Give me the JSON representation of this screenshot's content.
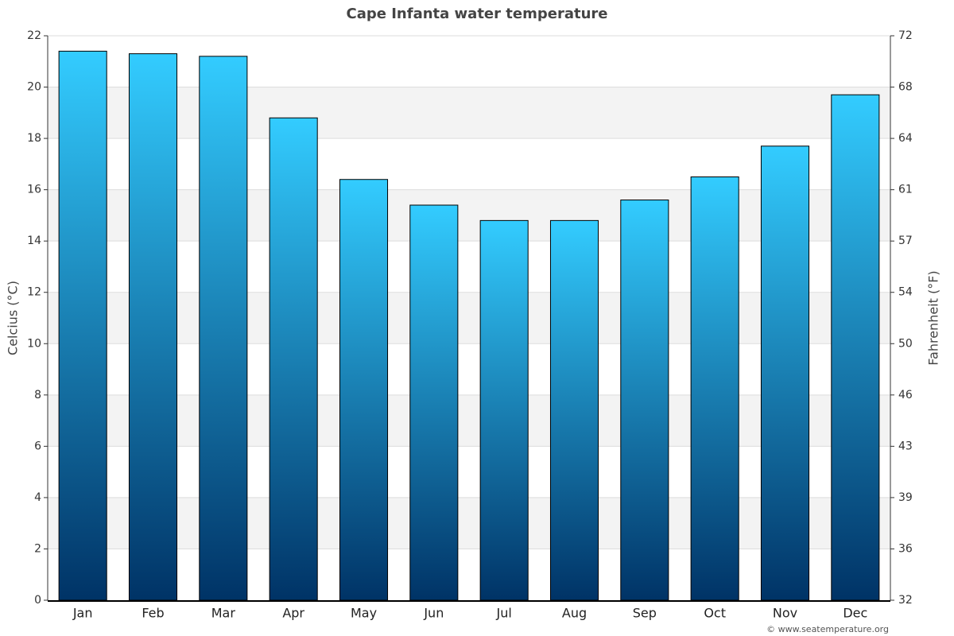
{
  "chart_data": {
    "type": "bar",
    "title": "Cape Infanta water temperature",
    "y_label": "Celcius (°C)",
    "y2_label": "Fahrenheit (°F)",
    "credit": "© www.seatemperature.org",
    "categories": [
      "Jan",
      "Feb",
      "Mar",
      "Apr",
      "May",
      "Jun",
      "Jul",
      "Aug",
      "Sep",
      "Oct",
      "Nov",
      "Dec"
    ],
    "values": [
      21.4,
      21.3,
      21.2,
      18.8,
      16.4,
      15.4,
      14.8,
      14.8,
      15.6,
      16.5,
      17.7,
      19.7
    ],
    "gradient": [
      "#33ccff",
      "#003366"
    ],
    "ylim": [
      0,
      22
    ],
    "yticks": [
      0,
      2,
      4,
      6,
      8,
      10,
      12,
      14,
      16,
      18,
      20,
      22
    ],
    "y2lim": [
      32,
      71.6
    ],
    "y2ticks": [
      32,
      {
        "value": 35.6,
        "label": "36"
      },
      {
        "value": 39.2,
        "label": "39"
      },
      {
        "value": 42.8,
        "label": "43"
      },
      {
        "value": 46.4,
        "label": "46"
      },
      50,
      {
        "value": 53.6,
        "label": "54"
      },
      {
        "value": 57.2,
        "label": "57"
      },
      {
        "value": 60.8,
        "label": "61"
      },
      {
        "value": 64.4,
        "label": "64"
      },
      68,
      {
        "value": 71.6,
        "label": "72"
      }
    ],
    "grid": true
  }
}
